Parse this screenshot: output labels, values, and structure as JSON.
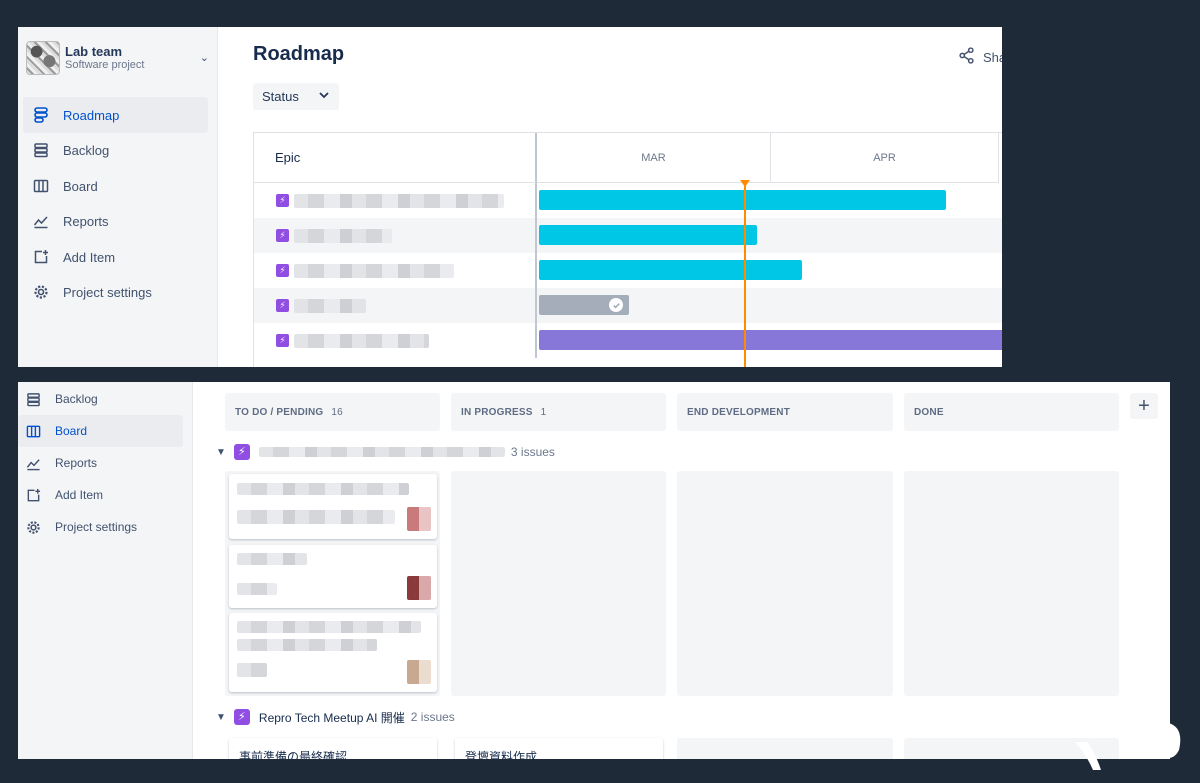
{
  "project": {
    "name": "Lab team",
    "type": "Software project"
  },
  "top_nav": [
    {
      "label": "Roadmap",
      "icon": "roadmap-icon",
      "active": true
    },
    {
      "label": "Backlog",
      "icon": "backlog-icon",
      "active": false
    },
    {
      "label": "Board",
      "icon": "board-icon",
      "active": false
    },
    {
      "label": "Reports",
      "icon": "reports-icon",
      "active": false
    },
    {
      "label": "Add Item",
      "icon": "add-item-icon",
      "active": false
    },
    {
      "label": "Project settings",
      "icon": "gear-icon",
      "active": false
    }
  ],
  "roadmap": {
    "title": "Roadmap",
    "share_label": "Sha",
    "status_filter": "Status",
    "epic_header": "Epic",
    "months": [
      "MAR",
      "APR"
    ],
    "bar_colors": {
      "cyan": "#00c7e6",
      "grey": "#a5adba",
      "purple": "#8777d9"
    }
  },
  "bottom_nav": [
    {
      "label": "Backlog",
      "icon": "backlog-icon",
      "active": false
    },
    {
      "label": "Board",
      "icon": "board-icon",
      "active": true
    },
    {
      "label": "Reports",
      "icon": "reports-icon",
      "active": false
    },
    {
      "label": "Add Item",
      "icon": "add-item-icon",
      "active": false
    },
    {
      "label": "Project settings",
      "icon": "gear-icon",
      "active": false
    }
  ],
  "board": {
    "columns": [
      {
        "title": "TO DO / PENDING",
        "count": "16"
      },
      {
        "title": "IN PROGRESS",
        "count": "1"
      },
      {
        "title": "END DEVELOPMENT",
        "count": ""
      },
      {
        "title": "DONE",
        "count": ""
      }
    ],
    "swimlane1": {
      "title": "",
      "issues": "3 issues"
    },
    "swimlane2": {
      "title": "Repro Tech Meetup AI 開催",
      "issues": "2 issues"
    },
    "swimlane2_cards": [
      "事前準備の最終確認",
      "登壇資料作成"
    ],
    "add_column": "+"
  }
}
